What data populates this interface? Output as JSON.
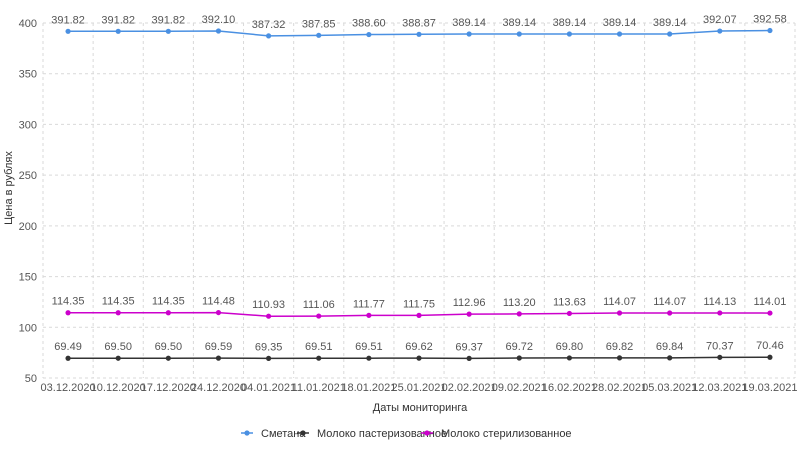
{
  "chart_data": {
    "type": "line",
    "xlabel": "Даты мониторинга",
    "ylabel": "Цена в рублях",
    "ylim": [
      50,
      400
    ],
    "yticks": [
      50,
      100,
      150,
      200,
      250,
      300,
      350,
      400
    ],
    "grid": true,
    "legend_position": "bottom",
    "categories": [
      "03.12.2020",
      "10.12.2020",
      "17.12.2020",
      "24.12.2020",
      "04.01.2021",
      "11.01.2021",
      "18.01.2021",
      "25.01.2021",
      "02.02.2021",
      "09.02.2021",
      "16.02.2021",
      "28.02.2021",
      "05.03.2021",
      "12.03.2021",
      "19.03.2021"
    ],
    "series": [
      {
        "name": "Сметана",
        "color": "#4a90e2",
        "values": [
          391.82,
          391.82,
          391.82,
          392.1,
          387.32,
          387.85,
          388.6,
          388.87,
          389.14,
          389.14,
          389.14,
          389.14,
          389.14,
          392.07,
          392.58
        ],
        "labels": [
          "391.82",
          "391.82",
          "391.82",
          "392.10",
          "387.32",
          "387.85",
          "388.60",
          "388.87",
          "389.14",
          "389.14",
          "389.14",
          "389.14",
          "389.14",
          "392.07",
          "392.58"
        ]
      },
      {
        "name": "Молоко пастеризованное",
        "color": "#333333",
        "values": [
          69.49,
          69.5,
          69.5,
          69.59,
          69.35,
          69.51,
          69.51,
          69.62,
          69.37,
          69.72,
          69.8,
          69.82,
          69.84,
          70.37,
          70.46
        ],
        "labels": [
          "69.49",
          "69.50",
          "69.50",
          "69.59",
          "69.35",
          "69.51",
          "69.51",
          "69.62",
          "69.37",
          "69.72",
          "69.80",
          "69.82",
          "69.84",
          "70.37",
          "70.46"
        ]
      },
      {
        "name": "Молоко стерилизованное",
        "color": "#cc00cc",
        "values": [
          114.35,
          114.35,
          114.35,
          114.48,
          110.93,
          111.06,
          111.77,
          111.75,
          112.96,
          113.2,
          113.63,
          114.07,
          114.07,
          114.13,
          114.01
        ],
        "labels": [
          "114.35",
          "114.35",
          "114.35",
          "114.48",
          "110.93",
          "111.06",
          "111.77",
          "111.75",
          "112.96",
          "113.20",
          "113.63",
          "114.07",
          "114.07",
          "114.13",
          "114.01"
        ]
      }
    ]
  }
}
